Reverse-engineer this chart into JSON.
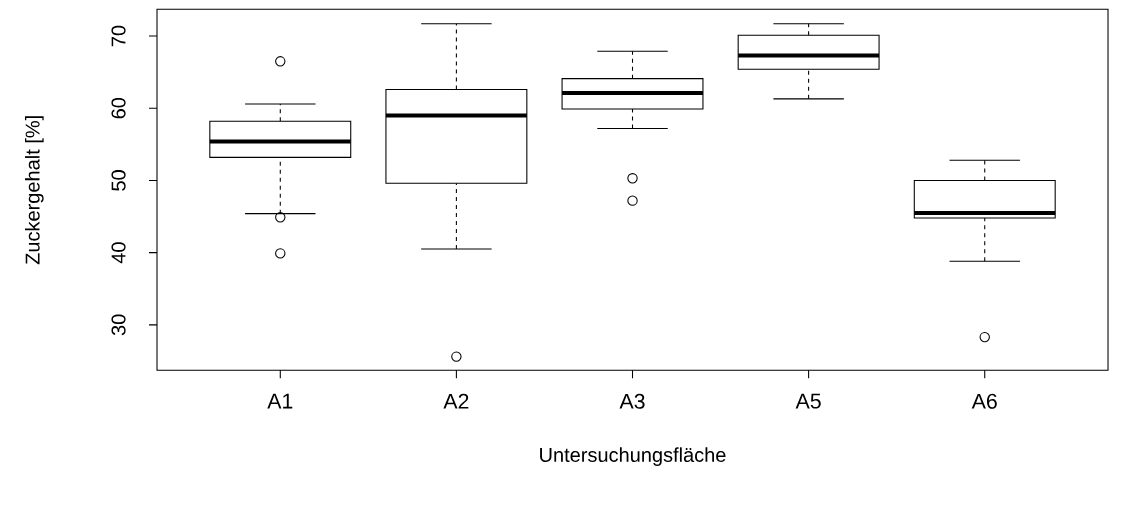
{
  "chart_data": {
    "type": "box",
    "xlabel": "Untersuchungsfläche",
    "ylabel": "Zuckergehalt [%]",
    "categories": [
      "A1",
      "A2",
      "A3",
      "A5",
      "A6"
    ],
    "boxes": [
      {
        "low": 45.4,
        "q1": 53.2,
        "median": 55.4,
        "q3": 58.2,
        "high": 60.6,
        "outliers": [
          66.5,
          44.9,
          39.9
        ]
      },
      {
        "low": 40.5,
        "q1": 49.6,
        "median": 59.0,
        "q3": 62.6,
        "high": 71.7,
        "outliers": [
          25.6
        ]
      },
      {
        "low": 57.2,
        "q1": 59.9,
        "median": 62.1,
        "q3": 64.1,
        "high": 67.9,
        "outliers": [
          50.3,
          47.2
        ]
      },
      {
        "low": 61.3,
        "q1": 65.4,
        "median": 67.3,
        "q3": 70.1,
        "high": 71.7
      },
      {
        "low": 38.8,
        "q1": 44.8,
        "median": 45.5,
        "q3": 50.0,
        "high": 52.8,
        "outliers": [
          28.3
        ]
      }
    ],
    "ylim": [
      23.7,
      73.7
    ],
    "yticks": [
      30,
      40,
      50,
      60,
      70
    ],
    "marker": "circle",
    "grid": false
  }
}
